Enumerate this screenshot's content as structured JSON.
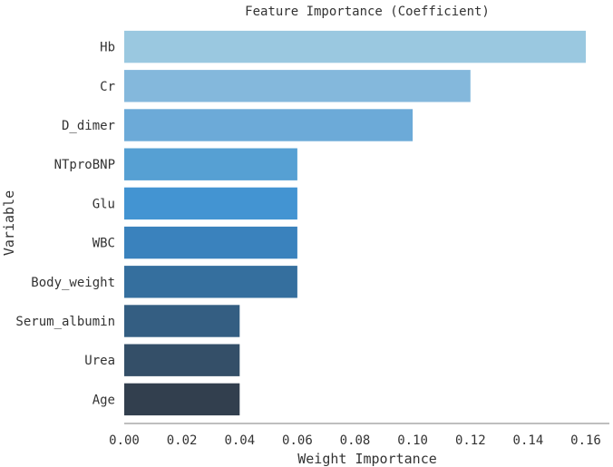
{
  "chart_data": {
    "type": "bar",
    "orientation": "horizontal",
    "title": "Feature Importance (Coefficient)",
    "xlabel": "Weight Importance",
    "ylabel": "Variable",
    "xlim": [
      0,
      0.165
    ],
    "xticks": [
      "0.00",
      "0.02",
      "0.04",
      "0.06",
      "0.08",
      "0.10",
      "0.12",
      "0.14",
      "0.16"
    ],
    "xtick_values": [
      0,
      0.02,
      0.04,
      0.06,
      0.08,
      0.1,
      0.12,
      0.14,
      0.16
    ],
    "categories": [
      "Hb",
      "Cr",
      "D_dimer",
      "NTproBNP",
      "Glu",
      "WBC",
      "Body_weight",
      "Serum_albumin",
      "Urea",
      "Age"
    ],
    "values": [
      0.16,
      0.12,
      0.1,
      0.06,
      0.06,
      0.06,
      0.06,
      0.04,
      0.04,
      0.04
    ],
    "colors": [
      "#9ac8e0",
      "#84b8dc",
      "#6caad8",
      "#56a0d3",
      "#4394d2",
      "#3a82bd",
      "#356f9e",
      "#345e82",
      "#344f68",
      "#323f4e"
    ],
    "grid": false,
    "legend": "none"
  }
}
